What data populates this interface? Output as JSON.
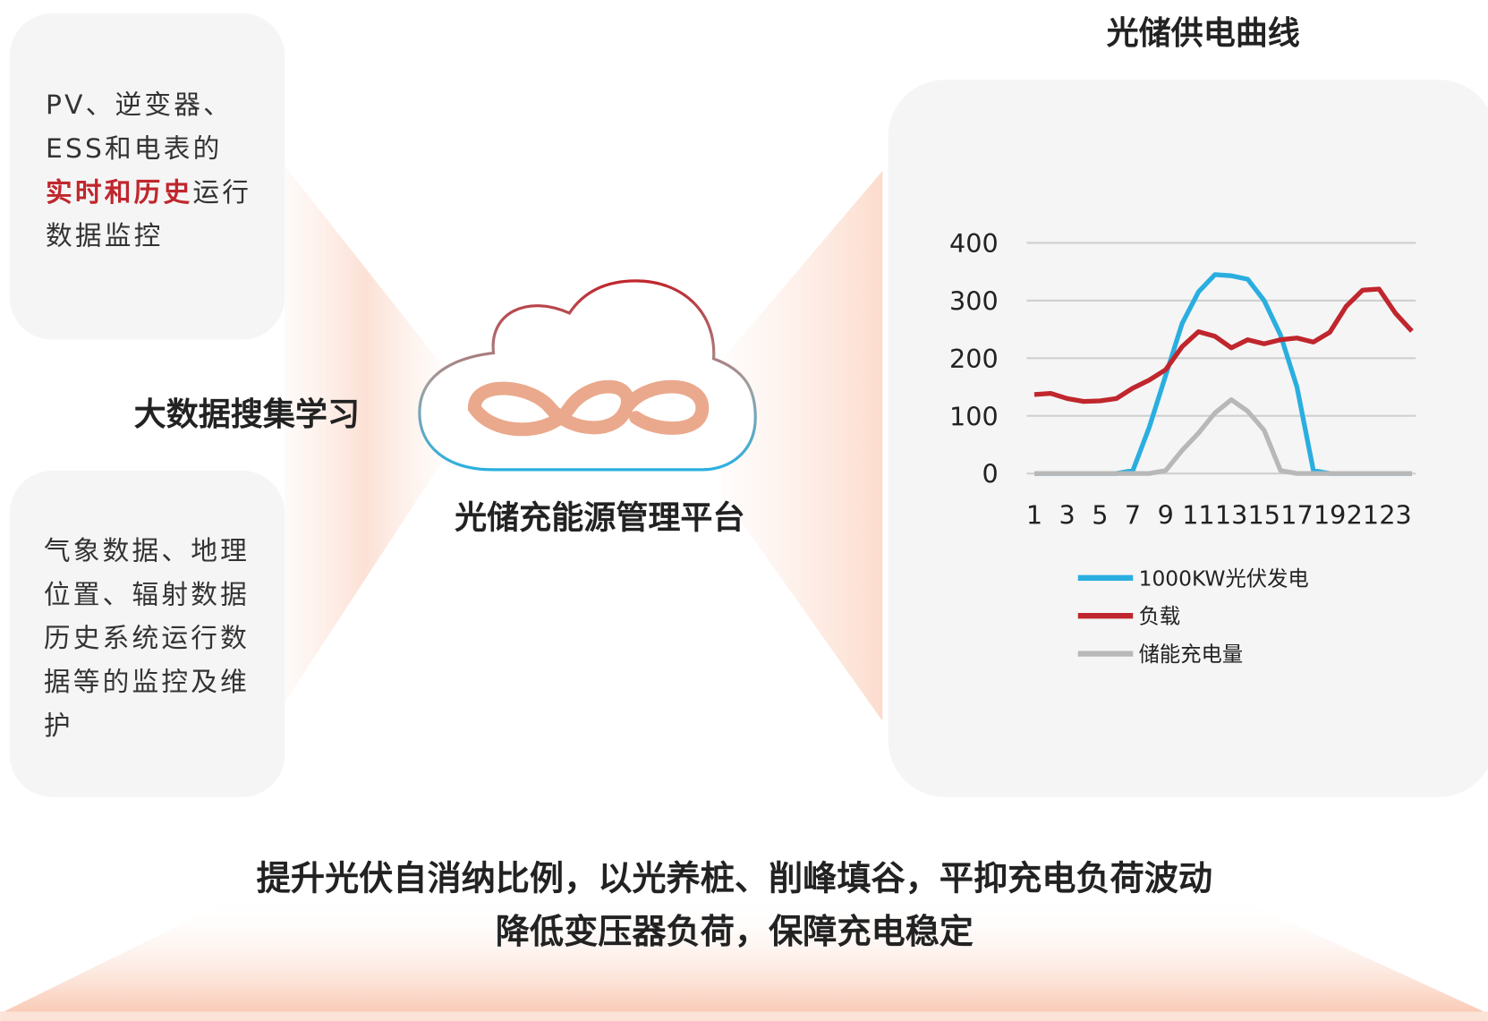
{
  "box1": {
    "lines": [
      [
        "PV、逆变器、"
      ],
      [
        "ESS和电表的"
      ],
      [
        "实时和历史",
        "运行"
      ],
      [
        "数据监控"
      ]
    ]
  },
  "box2": {
    "lines": [
      "气象数据、地理",
      "位置、辐射数据",
      "历史系统运行数",
      "据等的监控及维",
      "护"
    ]
  },
  "left_label": "大数据搜集学习",
  "center_label": "光储充能源管理平台",
  "bottom": {
    "lines": [
      "提升光伏自消纳比例，以光养桩、削峰填谷，平抑充电负荷波动",
      "降低变压器负荷，保障充电稳定"
    ]
  },
  "chart_data": {
    "type": "line",
    "title": "光储供电曲线",
    "categories": [
      1,
      null,
      3,
      null,
      5,
      null,
      7,
      null,
      9,
      null,
      11,
      null,
      13,
      null,
      15,
      null,
      17,
      null,
      19,
      null,
      21,
      null,
      23,
      null
    ],
    "series": [
      {
        "name": "1000KW光伏发电",
        "color": "#2aaee0",
        "values": [
          0,
          0,
          0,
          0,
          0,
          0,
          5,
          80,
          170,
          260,
          315,
          345,
          343,
          337,
          300,
          240,
          150,
          5,
          0,
          0,
          0,
          0,
          0,
          0
        ]
      },
      {
        "name": "负载",
        "color": "#c0262d",
        "values": [
          137,
          139,
          130,
          125,
          126,
          130,
          148,
          162,
          180,
          220,
          246,
          238,
          218,
          232,
          225,
          232,
          235,
          228,
          245,
          290,
          318,
          320,
          278,
          247
        ]
      },
      {
        "name": "储能充电量",
        "color": "#b8b8b8",
        "values": [
          0,
          0,
          0,
          0,
          0,
          0,
          0,
          0,
          5,
          40,
          70,
          105,
          128,
          108,
          75,
          5,
          0,
          0,
          0,
          0,
          0,
          0,
          0,
          0
        ]
      }
    ],
    "ylim": [
      0,
      400
    ],
    "yticks": [
      0,
      100,
      200,
      300,
      400
    ],
    "grid": true
  }
}
